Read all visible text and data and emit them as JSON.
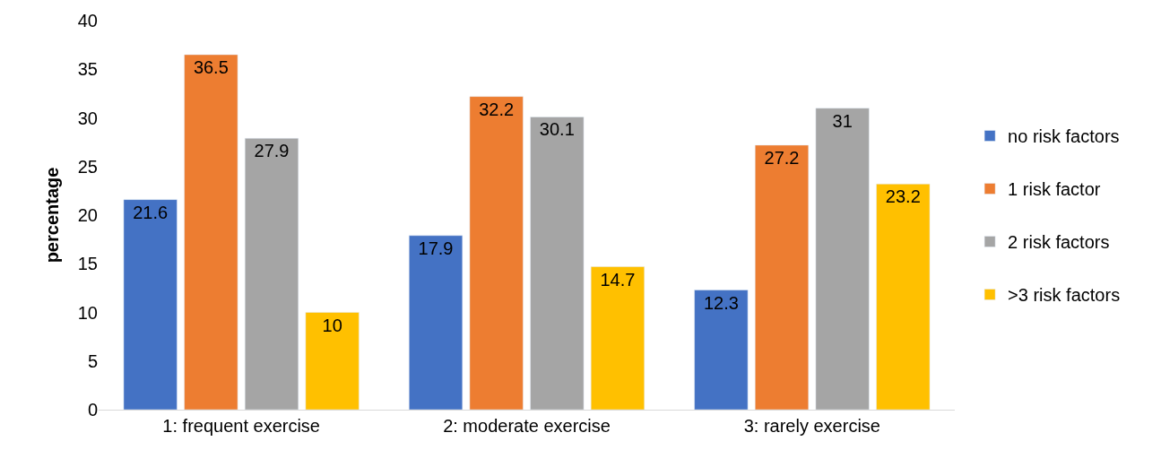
{
  "chart_data": {
    "type": "bar",
    "ylabel": "percentage",
    "categories": [
      "1: frequent exercise",
      "2: moderate exercise",
      "3: rarely exercise"
    ],
    "series": [
      {
        "name": "no risk factors",
        "color": "#4472c4",
        "values": [
          21.6,
          17.9,
          12.3
        ]
      },
      {
        "name": "1 risk factor",
        "color": "#ed7d31",
        "values": [
          36.5,
          32.2,
          27.2
        ]
      },
      {
        "name": "2 risk factors",
        "color": "#a5a5a5",
        "values": [
          27.9,
          30.1,
          31
        ]
      },
      {
        "name": ">3 risk factors",
        "color": "#ffc000",
        "values": [
          10,
          14.7,
          23.2
        ]
      }
    ],
    "ylim": [
      0,
      40
    ],
    "yticks": [
      0,
      5,
      10,
      15,
      20,
      25,
      30,
      35,
      40
    ],
    "data_labels": true,
    "grid": false,
    "legend": "right"
  }
}
